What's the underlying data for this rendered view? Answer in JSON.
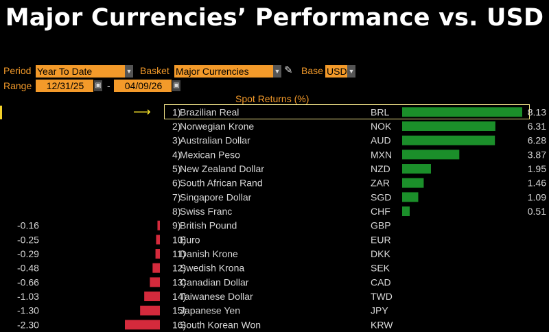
{
  "title": "Major Currencies’ Performance vs. USD",
  "controls": {
    "period_label": "Period",
    "period_value": "Year To Date",
    "basket_label": "Basket",
    "basket_value": "Major Currencies",
    "base_label": "Base",
    "base_value": "USD",
    "range_label": "Range",
    "range_start": "12/31/25",
    "range_sep": "-",
    "range_end": "04/09/26"
  },
  "colors": {
    "positive": "#1b8f2a",
    "negative": "#d42a3c",
    "accent": "#f39a2a",
    "highlight": "#f3e58a"
  },
  "chart_data": {
    "type": "bar",
    "title": "Spot Returns (%)",
    "orientation": "horizontal",
    "selected_index": 0,
    "categories": [
      "Brazilian Real",
      "Norwegian Krone",
      "Australian Dollar",
      "Mexican Peso",
      "New Zealand Dollar",
      "South African Rand",
      "Singapore Dollar",
      "Swiss Franc",
      "British Pound",
      "Euro",
      "Danish Krone",
      "Swedish Krona",
      "Canadian Dollar",
      "Taiwanese Dollar",
      "Japanese Yen",
      "South Korean Won"
    ],
    "ranks": [
      "1)",
      "2)",
      "3)",
      "4)",
      "5)",
      "6)",
      "7)",
      "8)",
      "9)",
      "10)",
      "11)",
      "12)",
      "13)",
      "14)",
      "15)",
      "16)"
    ],
    "codes": [
      "BRL",
      "NOK",
      "AUD",
      "MXN",
      "NZD",
      "ZAR",
      "SGD",
      "CHF",
      "GBP",
      "EUR",
      "DKK",
      "SEK",
      "CAD",
      "TWD",
      "JPY",
      "KRW"
    ],
    "values": [
      8.13,
      6.31,
      6.28,
      3.87,
      1.95,
      1.46,
      1.09,
      0.51,
      -0.16,
      -0.25,
      -0.29,
      -0.48,
      -0.66,
      -1.03,
      -1.3,
      -2.3
    ],
    "value_labels": [
      "8.13",
      "6.31",
      "6.28",
      "3.87",
      "1.95",
      "1.46",
      "1.09",
      "0.51",
      "-0.16",
      "-0.25",
      "-0.29",
      "-0.48",
      "-0.66",
      "-1.03",
      "-1.30",
      "-2.30"
    ]
  }
}
